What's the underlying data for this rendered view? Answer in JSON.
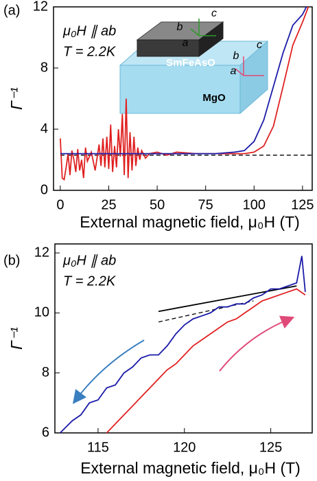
{
  "chart_data": [
    {
      "type": "line",
      "xlabel": "External magnetic field, μ₀H (T)",
      "ylabel": "Γ⁻¹",
      "annotations": [
        "(a)",
        "μ₀H ∥ ab",
        "T = 2.2K"
      ],
      "inset_labels": [
        "SmFeAsO",
        "MgO",
        "a",
        "b",
        "c",
        "a",
        "b",
        "c"
      ],
      "xlim": [
        -3.5,
        130
      ],
      "xticks": [
        0,
        25,
        50,
        75,
        100,
        125
      ],
      "ylim": [
        0,
        12
      ],
      "yticks": [
        0,
        4,
        8,
        12
      ],
      "series": [
        {
          "color": "#000000",
          "dash": true,
          "x": [
            0,
            130
          ],
          "values": [
            2.3,
            2.3
          ]
        },
        {
          "color": "#e02020",
          "x": [
            0,
            1,
            2,
            3,
            4,
            5,
            6,
            7,
            8,
            9,
            10,
            11,
            12,
            13,
            14,
            16,
            18,
            20,
            21,
            22,
            23,
            24,
            25,
            26,
            27,
            28,
            29,
            30,
            31,
            32,
            33,
            34,
            35,
            36,
            37,
            38,
            39,
            40,
            41,
            42,
            44,
            46,
            50,
            55,
            60,
            70,
            80,
            90,
            95,
            100,
            105,
            110,
            115,
            120,
            125,
            128
          ],
          "values": [
            3.4,
            0.8,
            0.7,
            1.5,
            2.4,
            1.0,
            2.6,
            2.0,
            1.2,
            2.7,
            1.3,
            2.0,
            0.8,
            2.8,
            1.9,
            2.5,
            1.3,
            3.0,
            1.6,
            3.4,
            1.5,
            3.5,
            1.4,
            4.3,
            1.2,
            2.9,
            1.5,
            4.0,
            2.2,
            5.0,
            1.0,
            6.0,
            0.8,
            3.8,
            1.3,
            3.5,
            1.6,
            2.8,
            2.0,
            2.6,
            2.1,
            2.4,
            2.5,
            2.3,
            2.5,
            2.4,
            2.4,
            2.4,
            2.4,
            2.5,
            2.9,
            4.2,
            6.8,
            9.5,
            11.0,
            12.0
          ]
        },
        {
          "color": "#1a1aa8",
          "x": [
            0,
            10,
            20,
            30,
            40,
            50,
            60,
            70,
            80,
            90,
            95,
            100,
            105,
            110,
            115,
            120,
            125,
            127
          ],
          "values": [
            2.4,
            2.4,
            2.4,
            2.4,
            2.4,
            2.4,
            2.4,
            2.4,
            2.4,
            2.5,
            2.6,
            3.2,
            4.6,
            6.8,
            9.0,
            10.8,
            11.5,
            12.0
          ]
        }
      ]
    },
    {
      "type": "line",
      "xlabel": "External magnetic field, μ₀H (T)",
      "ylabel": "Γ⁻¹",
      "annotations": [
        "(b)",
        "μ₀H ∥ ab",
        "T = 2.2K"
      ],
      "xlim": [
        112.5,
        127.4
      ],
      "xticks": [
        115,
        120,
        125
      ],
      "ylim": [
        6,
        12.3
      ],
      "yticks": [
        6,
        8,
        10,
        12
      ],
      "series": [
        {
          "color": "#000000",
          "x": [
            118.5,
            126.5
          ],
          "values": [
            10.05,
            10.9
          ]
        },
        {
          "color": "#000000",
          "dash": true,
          "x": [
            118.5,
            124
          ],
          "values": [
            9.7,
            10.4
          ]
        },
        {
          "color": "#1a1aa8",
          "x": [
            112.8,
            113.5,
            114,
            114.5,
            115,
            115.5,
            116,
            116.5,
            117,
            117.5,
            118,
            118.5,
            119,
            119.5,
            120,
            120.5,
            121,
            121.5,
            122,
            122.5,
            123,
            123.5,
            124,
            124.5,
            125,
            125.5,
            126,
            126.5,
            126.8,
            127
          ],
          "values": [
            6.0,
            6.4,
            6.6,
            7.0,
            7.1,
            7.5,
            7.6,
            8.0,
            8.2,
            8.5,
            8.6,
            8.6,
            8.9,
            9.3,
            9.6,
            9.8,
            9.9,
            10.0,
            10.2,
            10.2,
            10.3,
            10.3,
            10.5,
            10.6,
            10.8,
            10.8,
            10.9,
            11.0,
            11.9,
            10.7
          ]
        },
        {
          "color": "#e02020",
          "x": [
            115.5,
            116,
            116.5,
            117,
            117.5,
            118,
            118.5,
            119,
            119.5,
            120,
            120.5,
            121,
            121.5,
            122,
            122.5,
            123,
            123.5,
            124,
            124.5,
            125,
            125.5,
            126,
            126.5,
            127
          ],
          "values": [
            6.0,
            6.3,
            6.6,
            6.9,
            7.2,
            7.5,
            7.8,
            8.1,
            8.3,
            8.6,
            8.9,
            9.1,
            9.3,
            9.5,
            9.7,
            9.8,
            10.0,
            10.2,
            10.4,
            10.5,
            10.6,
            10.7,
            10.8,
            10.6
          ]
        }
      ]
    }
  ]
}
